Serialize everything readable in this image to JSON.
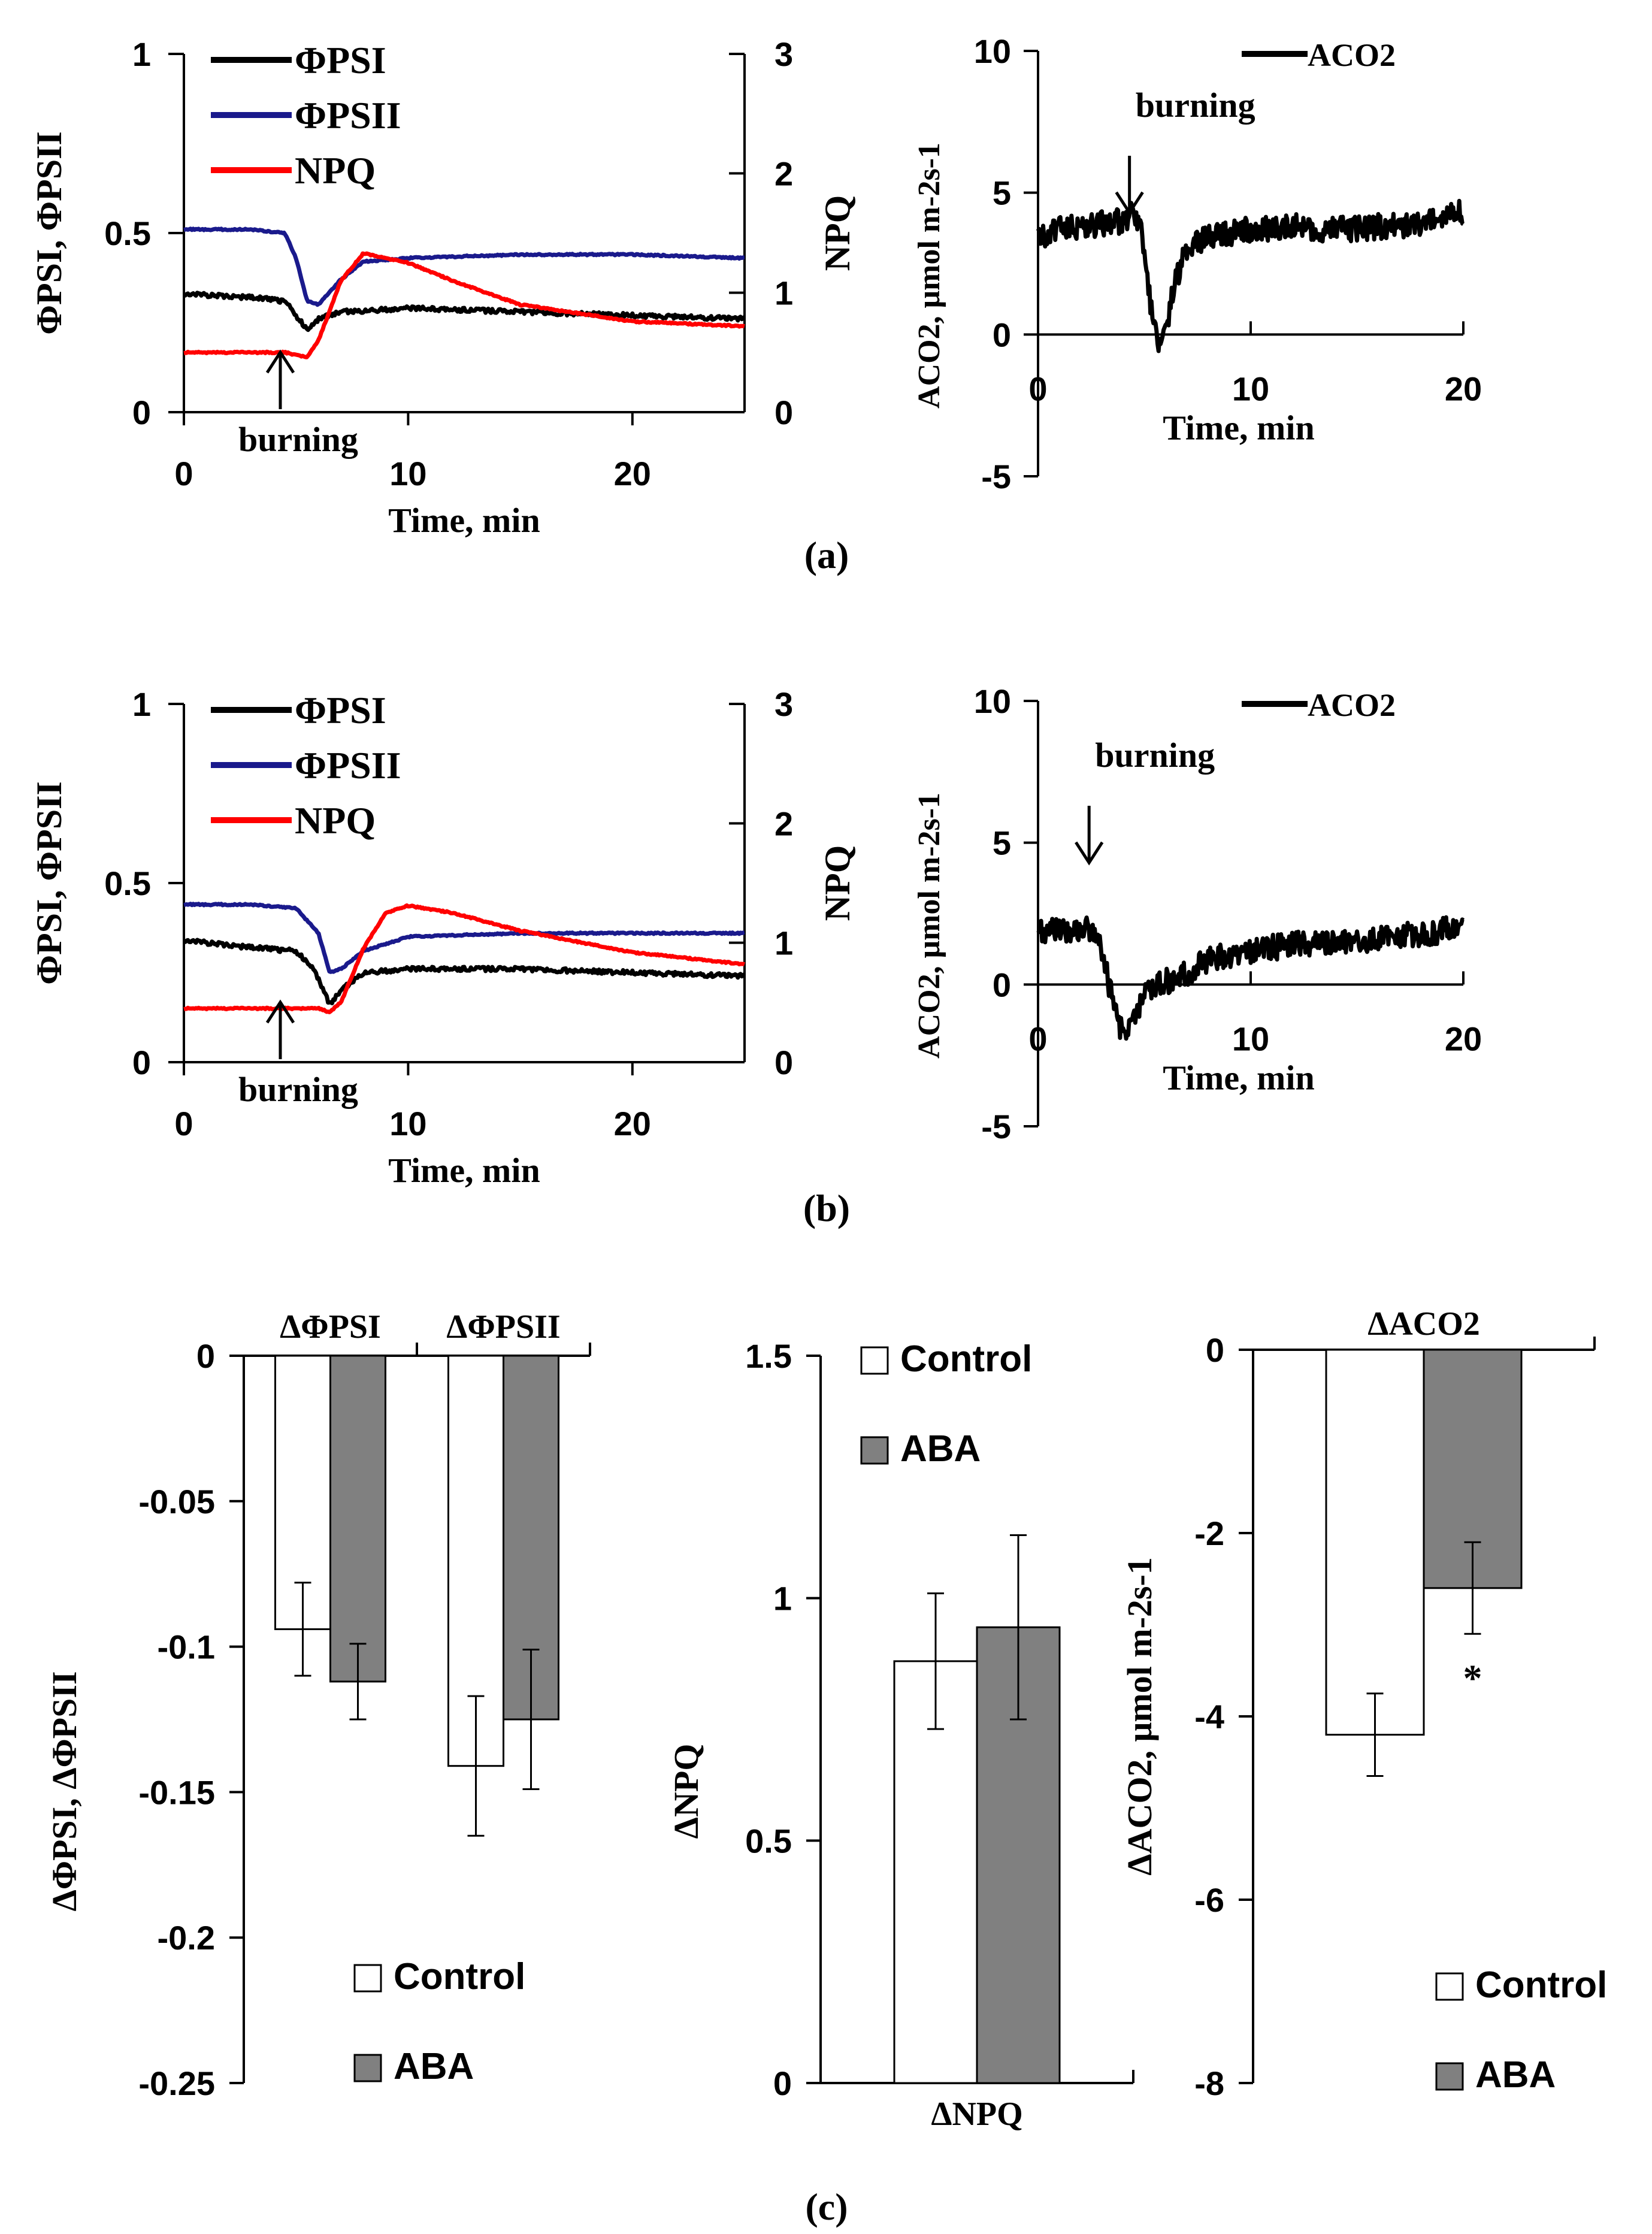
{
  "figure": {
    "panel_labels": [
      "(a)",
      "(b)",
      "(c)"
    ],
    "burning_label": "burning",
    "colors": {
      "psi": "#000000",
      "psii": "#1a1a8c",
      "npq": "#ff0000",
      "aco2": "#000000",
      "control_fill": "#ffffff",
      "aba_fill": "#808080"
    }
  },
  "chart_data": [
    {
      "id": "a-left",
      "type": "line",
      "panel": "(a)",
      "xlabel": "Time, min",
      "ylabel": "ΦPSI, ΦPSII",
      "y2label": "NPQ",
      "xlim": [
        0,
        25
      ],
      "ylim": [
        0,
        1
      ],
      "y2lim": [
        0,
        3
      ],
      "xticks": [
        "0",
        "10",
        "20"
      ],
      "yticks": [
        "0",
        "0.5",
        "1"
      ],
      "y2ticks": [
        "0",
        "1",
        "2",
        "3"
      ],
      "legend": [
        "ΦPSI",
        "ΦPSII",
        "NPQ"
      ],
      "annotation": {
        "text": "burning",
        "x": 4.3
      },
      "series": [
        {
          "name": "ΦPSI",
          "axis": "left",
          "x": [
            0,
            3,
            4.5,
            5,
            5.5,
            6,
            7,
            10,
            15,
            20,
            25
          ],
          "y": [
            0.33,
            0.32,
            0.31,
            0.27,
            0.23,
            0.26,
            0.28,
            0.29,
            0.28,
            0.27,
            0.26
          ]
        },
        {
          "name": "ΦPSII",
          "axis": "left",
          "x": [
            0,
            3,
            4.5,
            5,
            5.5,
            6,
            7,
            8,
            10,
            15,
            20,
            25
          ],
          "y": [
            0.51,
            0.51,
            0.5,
            0.43,
            0.31,
            0.3,
            0.37,
            0.42,
            0.43,
            0.44,
            0.44,
            0.43
          ]
        },
        {
          "name": "NPQ",
          "axis": "right",
          "x": [
            0,
            3,
            4.5,
            5.5,
            6,
            7,
            8,
            10,
            12,
            15,
            20,
            25
          ],
          "y": [
            0.5,
            0.5,
            0.5,
            0.46,
            0.6,
            1.1,
            1.33,
            1.25,
            1.1,
            0.9,
            0.76,
            0.72
          ]
        }
      ]
    },
    {
      "id": "a-right",
      "type": "line",
      "panel": "(a)",
      "xlabel": "Time, min",
      "ylabel": "ACO2, μmol m-2s-1",
      "xlim": [
        0,
        20
      ],
      "ylim": [
        -5,
        10
      ],
      "xticks": [
        "0",
        "10",
        "20"
      ],
      "yticks": [
        "-5",
        "0",
        "5",
        "10"
      ],
      "legend": [
        "ACO2"
      ],
      "annotation": {
        "text": "burning",
        "x": 4.3
      },
      "series": [
        {
          "name": "ACO2",
          "x": [
            0,
            1,
            2,
            3,
            4,
            4.5,
            5,
            5.3,
            5.6,
            6,
            6.5,
            7,
            8,
            10,
            12,
            14,
            16,
            18,
            20
          ],
          "y": [
            3.3,
            3.7,
            3.8,
            3.9,
            4.0,
            4.3,
            3.2,
            1.0,
            -0.3,
            0.2,
            2.0,
            3.0,
            3.4,
            3.7,
            3.8,
            3.7,
            3.8,
            3.9,
            4.3
          ]
        }
      ]
    },
    {
      "id": "b-left",
      "type": "line",
      "panel": "(b)",
      "xlabel": "Time, min",
      "ylabel": "ΦPSI, ΦPSII",
      "y2label": "NPQ",
      "xlim": [
        0,
        25
      ],
      "ylim": [
        0,
        1
      ],
      "y2lim": [
        0,
        3
      ],
      "xticks": [
        "0",
        "10",
        "20"
      ],
      "yticks": [
        "0",
        "0.5",
        "1"
      ],
      "y2ticks": [
        "0",
        "1",
        "2",
        "3"
      ],
      "legend": [
        "ΦPSI",
        "ΦPSII",
        "NPQ"
      ],
      "annotation": {
        "text": "burning",
        "x": 4.3
      },
      "series": [
        {
          "name": "ΦPSI",
          "axis": "left",
          "x": [
            0,
            3,
            5,
            5.8,
            6.5,
            7,
            8,
            10,
            15,
            20,
            25
          ],
          "y": [
            0.34,
            0.32,
            0.31,
            0.26,
            0.16,
            0.2,
            0.25,
            0.26,
            0.26,
            0.25,
            0.24
          ]
        },
        {
          "name": "ΦPSII",
          "axis": "left",
          "x": [
            0,
            3,
            5,
            6,
            6.5,
            7,
            8,
            10,
            15,
            20,
            25
          ],
          "y": [
            0.44,
            0.44,
            0.43,
            0.36,
            0.25,
            0.26,
            0.31,
            0.35,
            0.36,
            0.36,
            0.36
          ]
        },
        {
          "name": "NPQ",
          "axis": "right",
          "x": [
            0,
            5,
            6,
            6.5,
            7,
            8,
            9,
            10,
            12,
            15,
            20,
            25
          ],
          "y": [
            0.45,
            0.45,
            0.45,
            0.42,
            0.5,
            0.95,
            1.25,
            1.31,
            1.25,
            1.1,
            0.92,
            0.82
          ]
        }
      ]
    },
    {
      "id": "b-right",
      "type": "line",
      "panel": "(b)",
      "xlabel": "Time, min",
      "ylabel": "ACO2, μmol m-2s-1",
      "xlim": [
        0,
        20
      ],
      "ylim": [
        -5,
        10
      ],
      "xticks": [
        "0",
        "10",
        "20"
      ],
      "yticks": [
        "-5",
        "0",
        "5",
        "10"
      ],
      "legend": [
        "ACO2"
      ],
      "annotation": {
        "text": "burning",
        "x": 2.4
      },
      "series": [
        {
          "name": "ACO2",
          "x": [
            0,
            1,
            2,
            2.8,
            3.2,
            3.6,
            4,
            4.5,
            5,
            6,
            7,
            8,
            10,
            12,
            14,
            16,
            18,
            20
          ],
          "y": [
            1.8,
            1.9,
            2.0,
            1.9,
            0.5,
            -1.0,
            -1.8,
            -1.2,
            -0.3,
            0.1,
            0.4,
            0.9,
            1.2,
            1.4,
            1.5,
            1.6,
            1.8,
            2.0
          ]
        }
      ]
    },
    {
      "id": "c-left",
      "type": "bar",
      "panel": "(c)",
      "categories": [
        "ΔΦPSI",
        "ΔΦPSII"
      ],
      "ylabel": "ΔΦPSI, ΔΦPSII",
      "ylim": [
        -0.25,
        0
      ],
      "yticks": [
        "0",
        "-0.05",
        "-0.1",
        "-0.15",
        "-0.2",
        "-0.25"
      ],
      "legend": [
        "Control",
        "ABA"
      ],
      "series": [
        {
          "name": "Control",
          "values": [
            -0.094,
            -0.141
          ],
          "errors": [
            0.016,
            0.024
          ]
        },
        {
          "name": "ABA",
          "values": [
            -0.112,
            -0.125
          ],
          "errors": [
            0.013,
            0.024
          ]
        }
      ]
    },
    {
      "id": "c-middle",
      "type": "bar",
      "panel": "(c)",
      "categories": [
        "ΔNPQ"
      ],
      "ylabel": "ΔNPQ",
      "ylim": [
        0,
        1.5
      ],
      "yticks": [
        "0",
        "0.5",
        "1",
        "1.5"
      ],
      "legend": [
        "Control",
        "ABA"
      ],
      "series": [
        {
          "name": "Control",
          "values": [
            0.87
          ],
          "errors": [
            0.14
          ]
        },
        {
          "name": "ABA",
          "values": [
            0.94
          ],
          "errors": [
            0.19
          ]
        }
      ]
    },
    {
      "id": "c-right",
      "type": "bar",
      "panel": "(c)",
      "categories": [
        "ΔACO2"
      ],
      "ylabel": "ΔACO2, μmol m-2s-1",
      "ylim": [
        -8,
        0
      ],
      "yticks": [
        "0",
        "-2",
        "-4",
        "-6",
        "-8"
      ],
      "legend": [
        "Control",
        "ABA"
      ],
      "annotation": {
        "text": "*",
        "series": "ABA"
      },
      "series": [
        {
          "name": "Control",
          "values": [
            -4.2
          ],
          "errors": [
            0.45
          ]
        },
        {
          "name": "ABA",
          "values": [
            -2.6
          ],
          "errors": [
            0.5
          ]
        }
      ]
    }
  ]
}
